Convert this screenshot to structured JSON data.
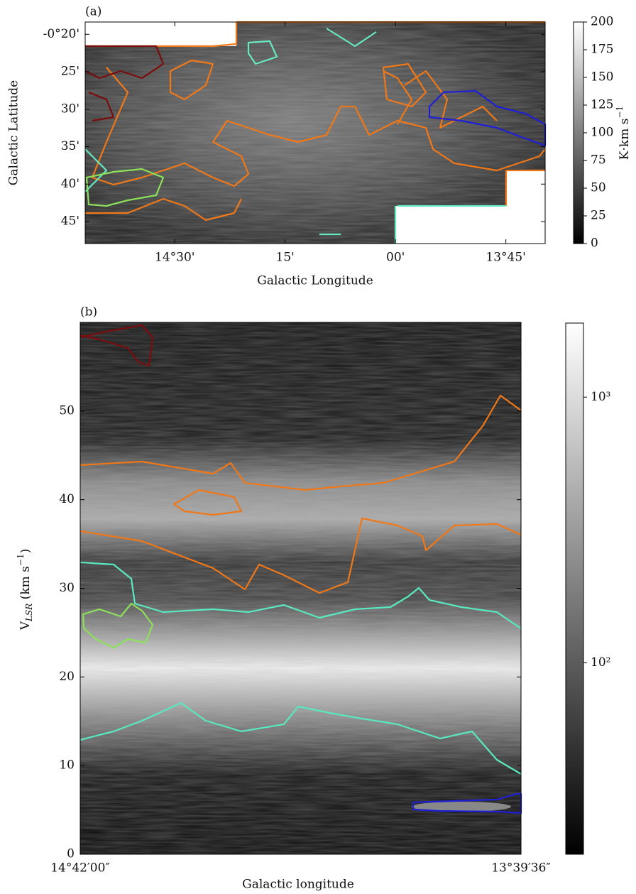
{
  "chart_data": [
    {
      "type": "image",
      "panel_label": "(a)",
      "x_label": "Galactic Longitude",
      "y_label": "Galactic Latitude",
      "xlim": [
        14.703,
        13.661
      ],
      "ylim": [
        -0.799,
        -0.306
      ],
      "xticks": [
        {
          "value": 14.5,
          "label": "14°30'"
        },
        {
          "value": 14.25,
          "label": "15'"
        },
        {
          "value": 14.0,
          "label": "00'"
        },
        {
          "value": 13.75,
          "label": "13°45'"
        }
      ],
      "yticks": [
        {
          "value": -0.3333,
          "label": "-0°20'"
        },
        {
          "value": -0.4167,
          "label": "25'"
        },
        {
          "value": -0.5,
          "label": "30'"
        },
        {
          "value": -0.5833,
          "label": "35'"
        },
        {
          "value": -0.6667,
          "label": "40'"
        },
        {
          "value": -0.75,
          "label": "45'"
        }
      ],
      "colorbar": {
        "label": [
          "K·km s",
          "−1"
        ],
        "lim": [
          0,
          200
        ],
        "ticks": [
          0,
          25,
          50,
          75,
          100,
          125,
          150,
          175,
          200
        ],
        "log": false
      }
    },
    {
      "type": "image",
      "panel_label": "(b)",
      "x_label": "Galactic longitude",
      "y_label": [
        "V",
        "LSR",
        " (km s",
        "−1",
        ")"
      ],
      "xlim": [
        14.7,
        13.66
      ],
      "ylim": [
        0,
        60
      ],
      "xticks": [
        {
          "value": 14.7,
          "label": "14°42′00″"
        },
        {
          "value": 13.66,
          "label": "13°39′36″"
        }
      ],
      "yticks": [
        0,
        10,
        20,
        30,
        40,
        50
      ],
      "colorbar": {
        "lim": [
          19,
          1900
        ],
        "ticks": [
          {
            "value": 100,
            "label": "10²"
          },
          {
            "value": 1000,
            "label": "10³"
          }
        ],
        "log": true
      }
    }
  ]
}
